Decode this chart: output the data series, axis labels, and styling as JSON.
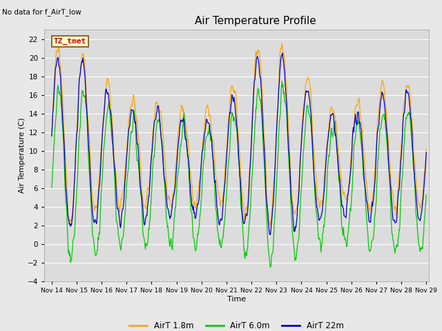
{
  "title": "Air Temperature Profile",
  "subtitle": "No data for f_AirT_low",
  "xlabel": "Time",
  "ylabel": "Air Temperature (C)",
  "legend_label": "TZ_tmet",
  "ylim": [
    -4,
    23
  ],
  "yticks": [
    -4,
    -2,
    0,
    2,
    4,
    6,
    8,
    10,
    12,
    14,
    16,
    18,
    20,
    22
  ],
  "colors": {
    "airT_1p8m": "#FFA500",
    "airT_6p0m": "#00CC00",
    "airT_22m": "#0000CC"
  },
  "bg_color": "#E8E8E8",
  "plot_bg": "#DCDCDC",
  "legend_items": [
    "AirT 1.8m",
    "AirT 6.0m",
    "AirT 22m"
  ],
  "x_tick_labels": [
    "Nov 14",
    "Nov 15",
    "Nov 16",
    "Nov 17",
    "Nov 18",
    "Nov 19",
    "Nov 20",
    "Nov 21",
    "Nov 22",
    "Nov 23",
    "Nov 24",
    "Nov 25",
    "Nov 26",
    "Nov 27",
    "Nov 28",
    "Nov 29"
  ],
  "n_days": 15,
  "pts_per_day": 48,
  "seed": 12345
}
